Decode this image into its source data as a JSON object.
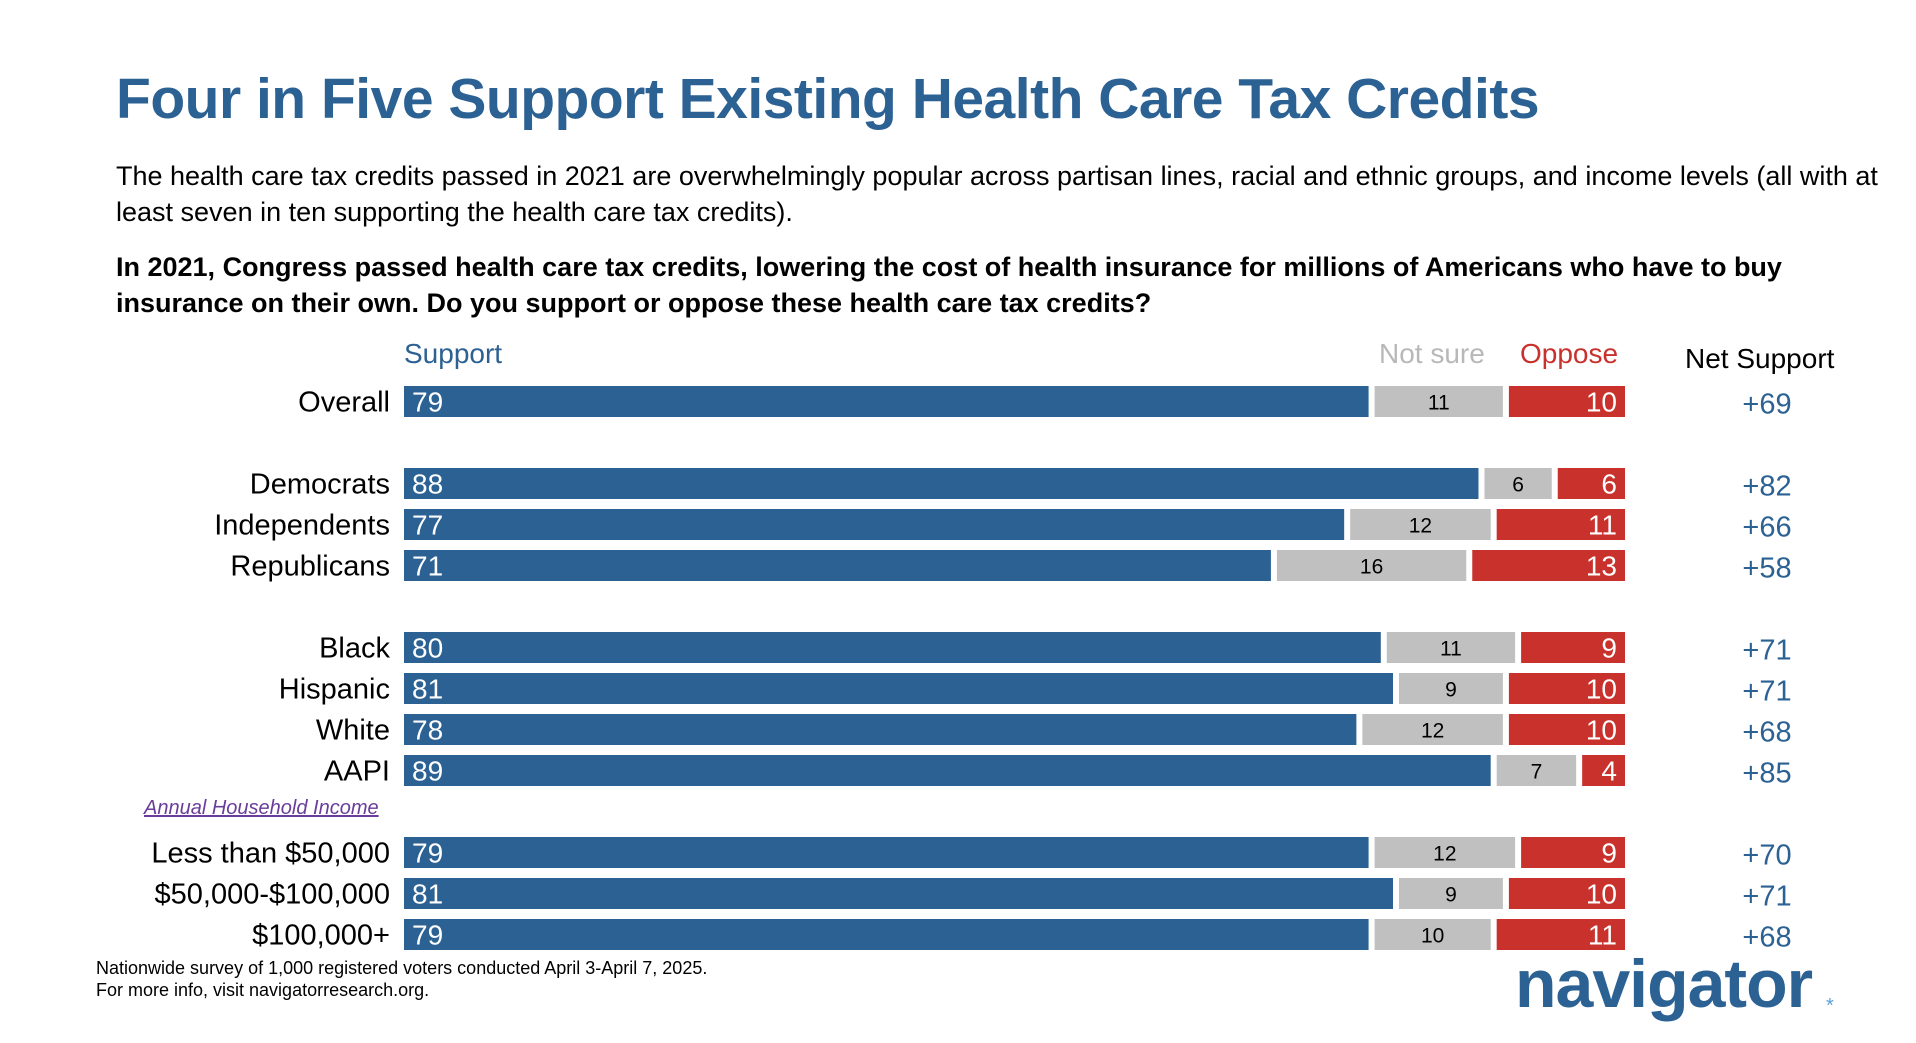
{
  "title": "Four in Five Support Existing Health Care Tax Credits",
  "subtitle": "The health care tax credits passed in 2021 are overwhelmingly popular across partisan lines, racial and ethnic groups, and income levels (all with at least seven in ten supporting the health care tax credits).",
  "question": "In 2021, Congress passed health care tax credits, lowering the cost of health insurance for millions of Americans who have to buy insurance on their own. Do you support or oppose these health care tax credits?",
  "legend": {
    "support": "Support",
    "not_sure": "Not sure",
    "oppose": "Oppose",
    "net_support": "Net Support"
  },
  "income_group_label": "Annual Household Income",
  "footnote": {
    "line1": "Nationwide survey of 1,000 registered voters conducted April 3-April 7, 2025.",
    "line2": "For more info, visit navigatorresearch.org."
  },
  "logo": "navigator",
  "logo_mark": "*",
  "colors": {
    "support": "#2c6193",
    "not_sure": "#c0c0c0",
    "oppose": "#c8312c",
    "title": "#2c6193"
  },
  "chart_data": {
    "type": "bar",
    "orientation": "horizontal",
    "stacked": true,
    "xlim": [
      0,
      100
    ],
    "series_order": [
      "Support",
      "Not sure",
      "Oppose"
    ],
    "rows": [
      {
        "group": "overall",
        "label": "Overall",
        "support": 79,
        "not_sure": 11,
        "oppose": 10,
        "net": "+69"
      },
      {
        "group": "party",
        "label": "Democrats",
        "support": 88,
        "not_sure": 6,
        "oppose": 6,
        "net": "+82"
      },
      {
        "group": "party",
        "label": "Independents",
        "support": 77,
        "not_sure": 12,
        "oppose": 11,
        "net": "+66"
      },
      {
        "group": "party",
        "label": "Republicans",
        "support": 71,
        "not_sure": 16,
        "oppose": 13,
        "net": "+58"
      },
      {
        "group": "race",
        "label": "Black",
        "support": 80,
        "not_sure": 11,
        "oppose": 9,
        "net": "+71"
      },
      {
        "group": "race",
        "label": "Hispanic",
        "support": 81,
        "not_sure": 9,
        "oppose": 10,
        "net": "+71"
      },
      {
        "group": "race",
        "label": "White",
        "support": 78,
        "not_sure": 12,
        "oppose": 10,
        "net": "+68"
      },
      {
        "group": "race",
        "label": "AAPI",
        "support": 89,
        "not_sure": 7,
        "oppose": 4,
        "net": "+85"
      },
      {
        "group": "income",
        "label": "Less than $50,000",
        "support": 79,
        "not_sure": 12,
        "oppose": 9,
        "net": "+70"
      },
      {
        "group": "income",
        "label": "$50,000-$100,000",
        "support": 81,
        "not_sure": 9,
        "oppose": 10,
        "net": "+71"
      },
      {
        "group": "income",
        "label": "$100,000+",
        "support": 79,
        "not_sure": 10,
        "oppose": 11,
        "net": "+68"
      }
    ]
  }
}
